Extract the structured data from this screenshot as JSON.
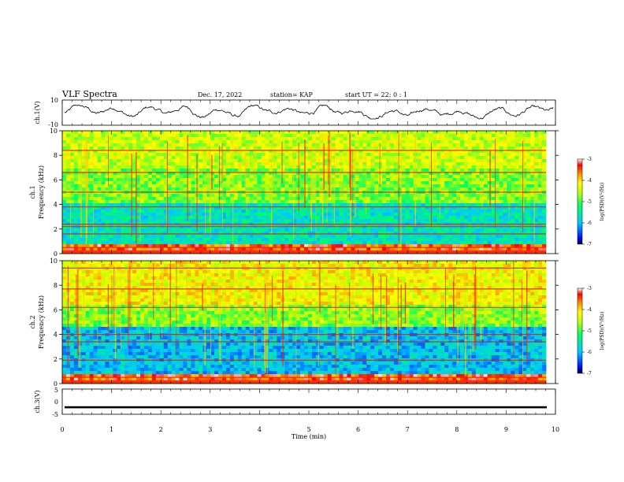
{
  "header": {
    "title": "VLF Spectra",
    "date": "Dec. 17, 2022",
    "station": "station= KAP",
    "start_ut": "start  UT =   22: 0  : 1"
  },
  "colors": {
    "background": "#ffffff",
    "axis": "#000000",
    "colormap": [
      "#000000",
      "#0000ff",
      "#00c8ff",
      "#00ff64",
      "#c8ff00",
      "#ffff00",
      "#ff8000",
      "#ff0000",
      "#ffffff"
    ]
  },
  "chart_data": [
    {
      "type": "line",
      "id": "ch1-waveform",
      "ylabel": "ch.1(V)",
      "ylim": [
        -10,
        10
      ],
      "yticks": [
        "10",
        "-10"
      ],
      "xlim": [
        0,
        10
      ],
      "note_series": "continuous waveform fluctuating roughly between -5 and 6 V over the 10 min"
    },
    {
      "type": "heatmap",
      "id": "ch1-spectrogram",
      "ylabel_line1": "ch.1",
      "ylabel_line2": "Frequency  (kHz)",
      "ylim": [
        0,
        10
      ],
      "yticks": [
        "0",
        "2",
        "4",
        "6",
        "8",
        "10"
      ],
      "xlim": [
        0,
        10
      ],
      "colorbar": {
        "label": "log(PSD)(V²/Hz)",
        "ticks": [
          "-3",
          "-4",
          "-5",
          "-6",
          "-7"
        ],
        "range": [
          -7,
          -3
        ]
      },
      "horizontal_lines_khz": [
        0.5,
        1.6,
        2.2,
        2.4,
        3.8,
        5.0,
        6.6,
        8.4
      ]
    },
    {
      "type": "heatmap",
      "id": "ch2-spectrogram",
      "ylabel_line1": "ch.2",
      "ylabel_line2": "Frequency  (kHz)",
      "ylim": [
        0,
        10
      ],
      "yticks": [
        "0",
        "2",
        "4",
        "6",
        "8",
        "10"
      ],
      "xlim": [
        0,
        10
      ],
      "colorbar": {
        "label": "log(PSD)(V²/Hz)",
        "ticks": [
          "-3",
          "-4",
          "-5",
          "-6",
          "-7"
        ],
        "range": [
          -7,
          -3
        ]
      },
      "horizontal_lines_khz": [
        0.5,
        1.9,
        3.4,
        4.0,
        6.2,
        7.7,
        9.4
      ]
    },
    {
      "type": "line",
      "id": "ch3-waveform",
      "ylabel": "ch.3(V)",
      "ylim": [
        -5,
        5
      ],
      "yticks": [
        "5",
        "0",
        "-5"
      ],
      "xlim": [
        0,
        10
      ],
      "xlabel": "Time  (min)",
      "xticks": [
        "0",
        "1",
        "2",
        "3",
        "4",
        "5",
        "6",
        "7",
        "8",
        "9",
        "10"
      ],
      "band_center": -2.2,
      "band_halfwidth": 0.4
    }
  ]
}
